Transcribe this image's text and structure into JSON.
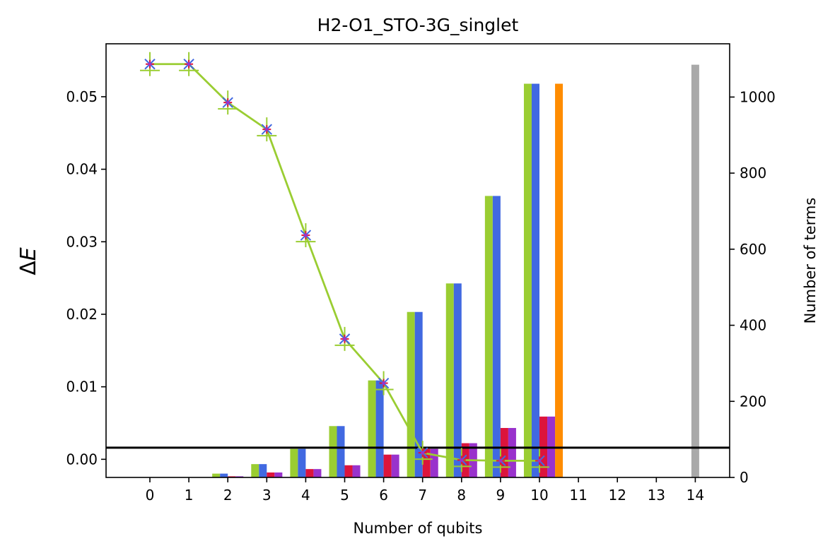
{
  "chart_data": {
    "type": "bar",
    "title": "H2-O1_STO-3G_singlet",
    "xlabel": "Number of qubits",
    "ylabel_left_symbol": "Δ",
    "ylabel_left_var": "E",
    "ylabel_right": "Number of terms",
    "x_ticks": [
      "0",
      "1",
      "2",
      "3",
      "4",
      "5",
      "6",
      "7",
      "8",
      "9",
      "10",
      "11",
      "12",
      "13",
      "14"
    ],
    "ylim_left": [
      -0.0025,
      0.0573
    ],
    "yticks_left": [
      "0.00",
      "0.01",
      "0.02",
      "0.03",
      "0.04",
      "0.05"
    ],
    "ylim_right": [
      0,
      1140
    ],
    "yticks_right": [
      "0",
      "200",
      "400",
      "600",
      "800",
      "1000"
    ],
    "bar_series": [
      {
        "color": "#9acd32",
        "offset": -0.3,
        "x": [
          2,
          3,
          4,
          5,
          6,
          7,
          8,
          9,
          10
        ],
        "values": [
          10,
          35,
          75,
          135,
          255,
          435,
          510,
          740,
          1035
        ]
      },
      {
        "color": "#4169e1",
        "offset": -0.1,
        "x": [
          2,
          3,
          4,
          5,
          6,
          7,
          8,
          9,
          10
        ],
        "values": [
          10,
          35,
          75,
          135,
          255,
          435,
          510,
          740,
          1035
        ]
      },
      {
        "color": "#dc143c",
        "offset": 0.1,
        "x": [
          2,
          3,
          4,
          5,
          6,
          7,
          8,
          9,
          10
        ],
        "values": [
          3,
          13,
          22,
          32,
          60,
          75,
          90,
          130,
          160
        ]
      },
      {
        "color": "#9932cc",
        "offset": 0.3,
        "x": [
          2,
          3,
          4,
          5,
          6,
          7,
          8,
          9,
          10
        ],
        "values": [
          3,
          13,
          22,
          32,
          60,
          75,
          90,
          130,
          160
        ]
      },
      {
        "color": "#ff8c00",
        "offset": 0.5,
        "x": [
          10
        ],
        "values": [
          1035
        ]
      },
      {
        "color": "#a9a9a9",
        "offset": 0.0,
        "x": [
          14
        ],
        "values": [
          1085
        ]
      }
    ],
    "line_series": {
      "color": "#9acd32",
      "x": [
        0,
        1,
        2,
        3,
        4,
        5,
        6,
        7,
        8,
        9,
        10
      ],
      "values": [
        0.0545,
        0.0545,
        0.0492,
        0.0455,
        0.0309,
        0.0166,
        0.0105,
        0.0009,
        -0.0001,
        -0.0002,
        -0.0002
      ]
    },
    "hline": {
      "value": 0.0016,
      "color": "#000000"
    }
  }
}
